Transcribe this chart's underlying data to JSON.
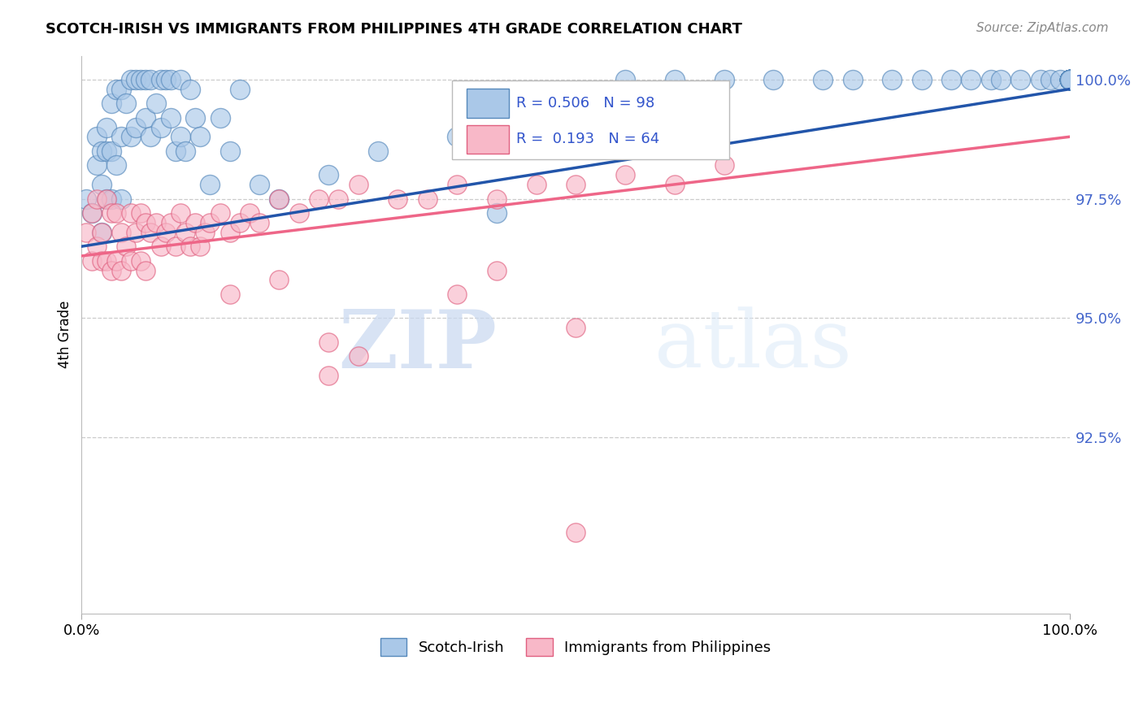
{
  "title": "SCOTCH-IRISH VS IMMIGRANTS FROM PHILIPPINES 4TH GRADE CORRELATION CHART",
  "source": "Source: ZipAtlas.com",
  "ylabel": "4th Grade",
  "xlim": [
    0.0,
    1.0
  ],
  "ylim": [
    0.888,
    1.005
  ],
  "yticks": [
    0.925,
    0.95,
    0.975,
    1.0
  ],
  "ytick_labels": [
    "92.5%",
    "95.0%",
    "97.5%",
    "100.0%"
  ],
  "xticks": [
    0.0,
    1.0
  ],
  "xtick_labels": [
    "0.0%",
    "100.0%"
  ],
  "blue_R": 0.506,
  "blue_N": 98,
  "pink_R": 0.193,
  "pink_N": 64,
  "blue_color": "#aac8e8",
  "blue_edge_color": "#5588bb",
  "pink_color": "#f8b8c8",
  "pink_edge_color": "#e06080",
  "blue_line_color": "#2255aa",
  "pink_line_color": "#ee6688",
  "legend_label_blue": "Scotch-Irish",
  "legend_label_pink": "Immigrants from Philippines",
  "watermark_zip": "ZIP",
  "watermark_atlas": "atlas",
  "background_color": "#ffffff",
  "grid_color": "#cccccc",
  "blue_line_y_start": 0.965,
  "blue_line_y_end": 0.998,
  "pink_line_y_start": 0.963,
  "pink_line_y_end": 0.988,
  "blue_x": [
    0.005,
    0.01,
    0.015,
    0.015,
    0.02,
    0.02,
    0.02,
    0.025,
    0.025,
    0.025,
    0.03,
    0.03,
    0.03,
    0.035,
    0.035,
    0.04,
    0.04,
    0.04,
    0.045,
    0.05,
    0.05,
    0.055,
    0.055,
    0.06,
    0.065,
    0.065,
    0.07,
    0.07,
    0.075,
    0.08,
    0.08,
    0.085,
    0.09,
    0.09,
    0.095,
    0.1,
    0.1,
    0.105,
    0.11,
    0.115,
    0.12,
    0.13,
    0.14,
    0.15,
    0.16,
    0.18,
    0.2,
    0.25,
    0.3,
    0.38,
    0.42,
    0.55,
    0.6,
    0.65,
    0.7,
    0.75,
    0.78,
    0.82,
    0.85,
    0.88,
    0.9,
    0.92,
    0.93,
    0.95,
    0.97,
    0.98,
    0.99,
    1.0,
    1.0,
    1.0,
    1.0,
    1.0,
    1.0,
    1.0,
    1.0,
    1.0,
    1.0,
    1.0,
    1.0,
    1.0,
    1.0,
    1.0,
    1.0,
    1.0,
    1.0,
    1.0,
    1.0,
    1.0,
    1.0,
    1.0,
    1.0,
    1.0,
    1.0,
    1.0,
    1.0,
    1.0,
    1.0,
    1.0
  ],
  "blue_y": [
    0.975,
    0.972,
    0.982,
    0.988,
    0.985,
    0.978,
    0.968,
    0.99,
    0.985,
    0.975,
    0.995,
    0.985,
    0.975,
    0.998,
    0.982,
    0.998,
    0.988,
    0.975,
    0.995,
    1.0,
    0.988,
    1.0,
    0.99,
    1.0,
    1.0,
    0.992,
    1.0,
    0.988,
    0.995,
    1.0,
    0.99,
    1.0,
    1.0,
    0.992,
    0.985,
    1.0,
    0.988,
    0.985,
    0.998,
    0.992,
    0.988,
    0.978,
    0.992,
    0.985,
    0.998,
    0.978,
    0.975,
    0.98,
    0.985,
    0.988,
    0.972,
    1.0,
    1.0,
    1.0,
    1.0,
    1.0,
    1.0,
    1.0,
    1.0,
    1.0,
    1.0,
    1.0,
    1.0,
    1.0,
    1.0,
    1.0,
    1.0,
    1.0,
    1.0,
    1.0,
    1.0,
    1.0,
    1.0,
    1.0,
    1.0,
    1.0,
    1.0,
    1.0,
    1.0,
    1.0,
    1.0,
    1.0,
    1.0,
    1.0,
    1.0,
    1.0,
    1.0,
    1.0,
    1.0,
    1.0,
    1.0,
    1.0,
    1.0,
    1.0,
    1.0,
    1.0,
    1.0,
    1.0
  ],
  "pink_x": [
    0.005,
    0.01,
    0.01,
    0.015,
    0.015,
    0.02,
    0.02,
    0.025,
    0.025,
    0.03,
    0.03,
    0.035,
    0.035,
    0.04,
    0.04,
    0.045,
    0.05,
    0.05,
    0.055,
    0.06,
    0.06,
    0.065,
    0.065,
    0.07,
    0.075,
    0.08,
    0.085,
    0.09,
    0.095,
    0.1,
    0.105,
    0.11,
    0.115,
    0.12,
    0.125,
    0.13,
    0.14,
    0.15,
    0.16,
    0.17,
    0.18,
    0.2,
    0.22,
    0.24,
    0.26,
    0.28,
    0.32,
    0.35,
    0.38,
    0.42,
    0.46,
    0.5,
    0.55,
    0.6,
    0.65,
    0.38,
    0.42,
    0.5,
    0.15,
    0.2,
    0.25,
    0.25,
    0.28,
    0.5
  ],
  "pink_y": [
    0.968,
    0.972,
    0.962,
    0.975,
    0.965,
    0.968,
    0.962,
    0.975,
    0.962,
    0.972,
    0.96,
    0.972,
    0.962,
    0.968,
    0.96,
    0.965,
    0.972,
    0.962,
    0.968,
    0.972,
    0.962,
    0.97,
    0.96,
    0.968,
    0.97,
    0.965,
    0.968,
    0.97,
    0.965,
    0.972,
    0.968,
    0.965,
    0.97,
    0.965,
    0.968,
    0.97,
    0.972,
    0.968,
    0.97,
    0.972,
    0.97,
    0.975,
    0.972,
    0.975,
    0.975,
    0.978,
    0.975,
    0.975,
    0.978,
    0.975,
    0.978,
    0.978,
    0.98,
    0.978,
    0.982,
    0.955,
    0.96,
    0.948,
    0.955,
    0.958,
    0.945,
    0.938,
    0.942,
    0.905
  ]
}
